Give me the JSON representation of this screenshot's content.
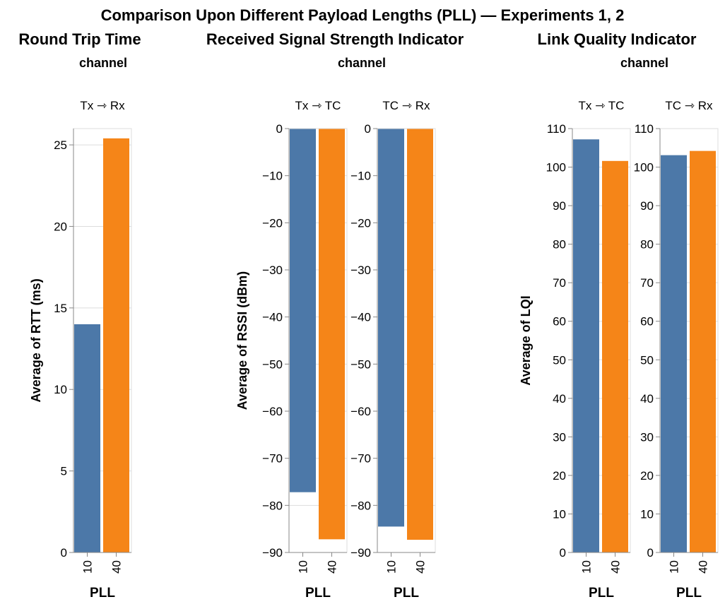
{
  "title": "Comparison Upon Different Payload Lengths (PLL) — Experiments 1, 2",
  "colors": {
    "PLL 10": "#4c78a8",
    "PLL 40": "#f58518"
  },
  "chart_data": [
    {
      "type": "bar",
      "title": "Round Trip Time",
      "facet_label": "channel",
      "ylabel": "Average of RTT (ms)",
      "xlabel": "PLL",
      "ylim": [
        0,
        26
      ],
      "yticks": [
        0,
        5,
        10,
        15,
        20,
        25
      ],
      "categories": [
        "10",
        "40"
      ],
      "grid": true,
      "facets": [
        {
          "name": "Tx ⇾ Rx",
          "values": [
            14.0,
            25.4
          ]
        }
      ]
    },
    {
      "type": "bar",
      "title": "Received Signal Strength Indicator",
      "facet_label": "channel",
      "ylabel": "Average of RSSI (dBm)",
      "xlabel": "PLL",
      "ylim": [
        -90,
        0
      ],
      "yticks": [
        0,
        -10,
        -20,
        -30,
        -40,
        -50,
        -60,
        -70,
        -80,
        -90
      ],
      "categories": [
        "10",
        "40"
      ],
      "grid": true,
      "facets": [
        {
          "name": "Tx ⇾ TC",
          "values": [
            -77.2,
            -87.2
          ]
        },
        {
          "name": "TC ⇾ Rx",
          "values": [
            -84.5,
            -87.3
          ]
        }
      ]
    },
    {
      "type": "bar",
      "title": "Link Quality Indicator",
      "facet_label": "channel",
      "ylabel": "Average of LQI",
      "xlabel": "PLL",
      "ylim": [
        0,
        110
      ],
      "yticks": [
        0,
        10,
        20,
        30,
        40,
        50,
        60,
        70,
        80,
        90,
        100,
        110
      ],
      "categories": [
        "10",
        "40"
      ],
      "grid": true,
      "facets": [
        {
          "name": "Tx ⇾ TC",
          "values": [
            107.2,
            101.6
          ]
        },
        {
          "name": "TC ⇾ Rx",
          "values": [
            103.1,
            104.2
          ]
        }
      ]
    }
  ]
}
